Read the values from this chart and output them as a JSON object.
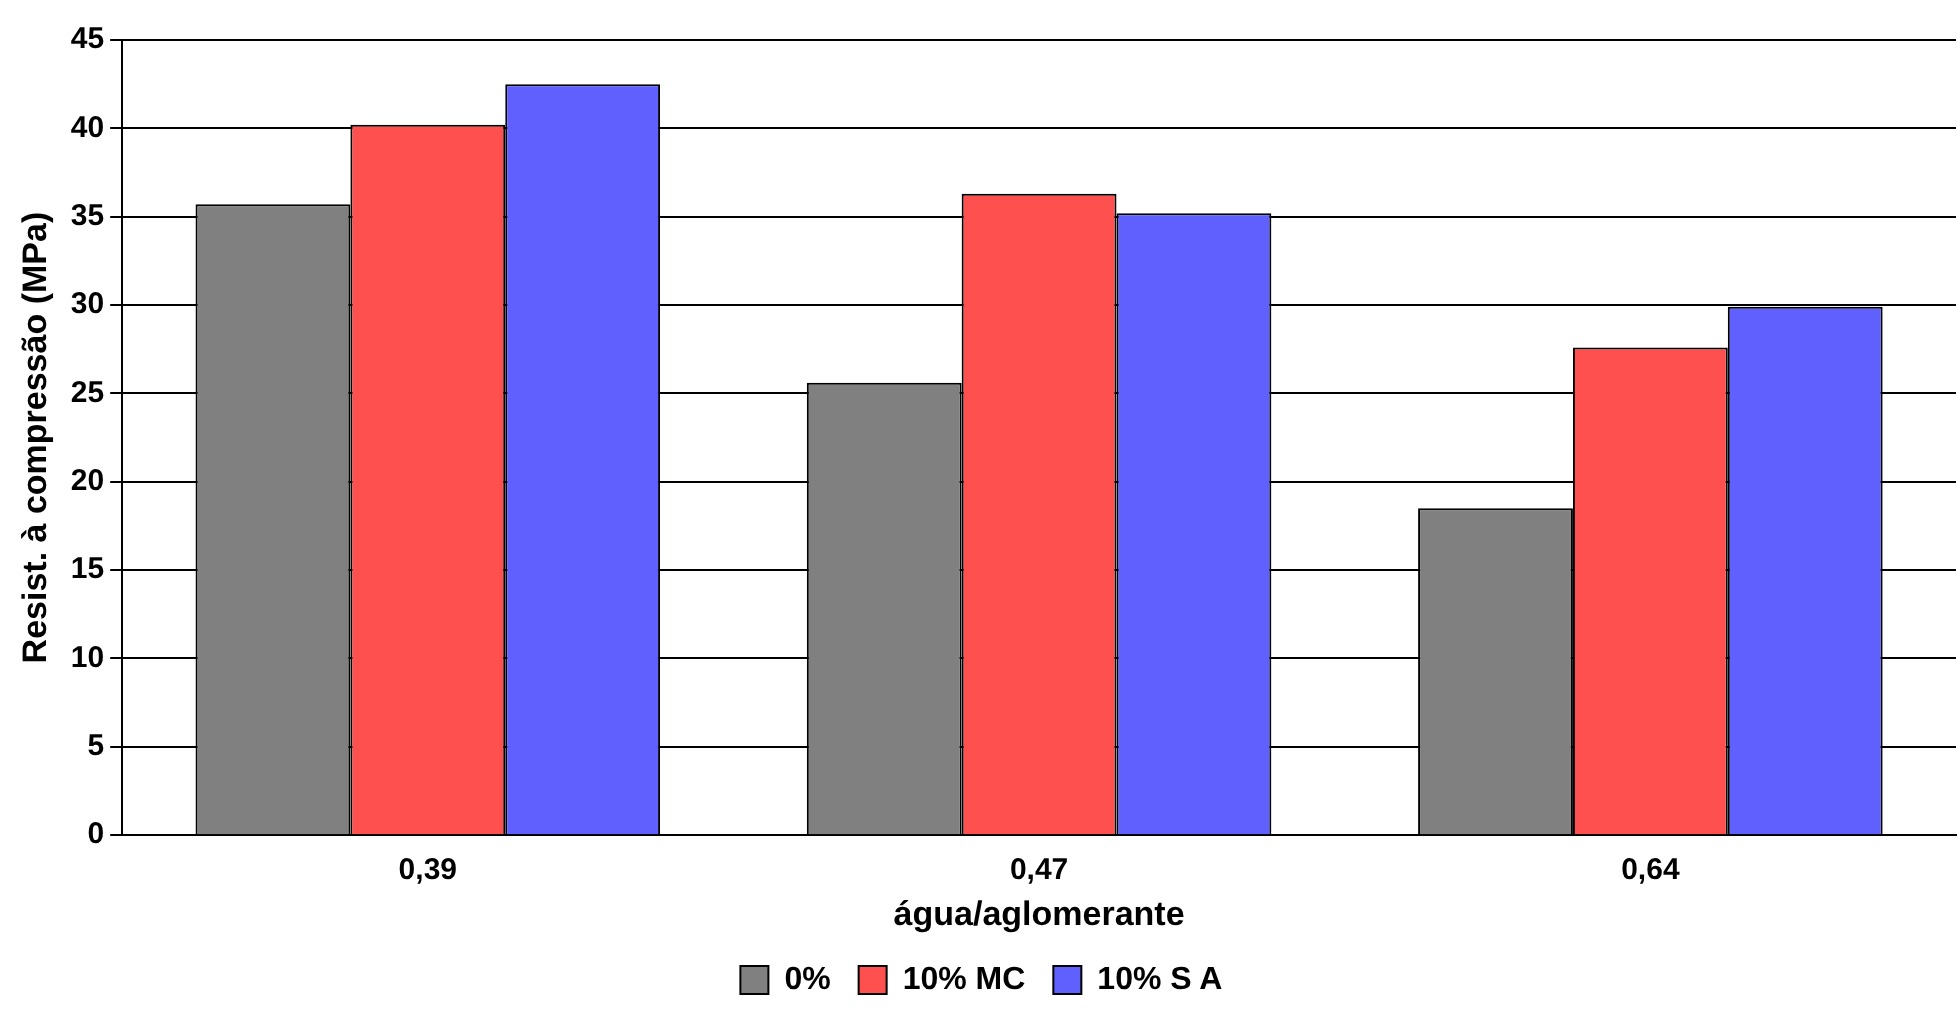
{
  "chart_data": {
    "type": "bar",
    "xlabel": "água/aglomerante",
    "ylabel": "Resist. à compressão (MPa)",
    "categories": [
      "0,39",
      "0,47",
      "0,64"
    ],
    "series": [
      {
        "name": "0%",
        "color": "#808080",
        "values": [
          35.7,
          25.6,
          18.5
        ]
      },
      {
        "name": "10% MC",
        "color": "#ff5050",
        "values": [
          40.2,
          36.3,
          27.6
        ]
      },
      {
        "name": "10% S A",
        "color": "#6060ff",
        "values": [
          42.5,
          35.2,
          29.9
        ]
      }
    ],
    "ylim": [
      0,
      45
    ],
    "yticks": [
      0,
      5,
      10,
      15,
      20,
      25,
      30,
      35,
      40,
      45
    ],
    "grid": "y",
    "legend": "bottom"
  }
}
